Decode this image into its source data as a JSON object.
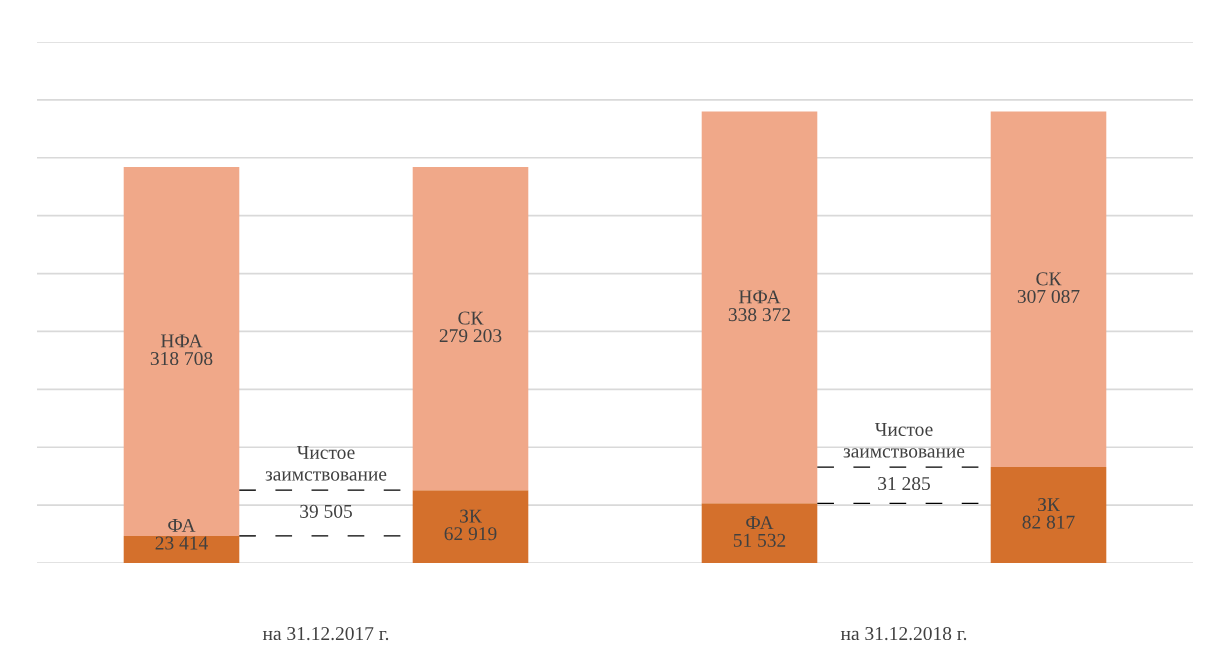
{
  "chart_data": {
    "type": "bar",
    "stacked": true,
    "categories": [
      null,
      null,
      null,
      null
    ],
    "ylim": [
      0,
      450000
    ],
    "yticks": [
      {
        "value": 0,
        "label": null
      },
      {
        "value": 50000,
        "label": null
      },
      {
        "value": 100000,
        "label": null
      },
      {
        "value": 150000,
        "label": null
      },
      {
        "value": 200000,
        "label": null
      },
      {
        "value": 250000,
        "label": null
      },
      {
        "value": 300000,
        "label": null
      },
      {
        "value": 350000,
        "label": null
      },
      {
        "value": 400000,
        "label": null
      },
      {
        "value": 450000,
        "label": null
      }
    ],
    "grid": "y",
    "legend": false,
    "ref_lines": [
      {
        "axis": "y",
        "value": 23414,
        "color": "#000000",
        "line_style": "dashed"
      },
      {
        "axis": "y",
        "value": 62919,
        "color": "#000000",
        "line_style": "dashed"
      },
      {
        "axis": "y",
        "value": 51532,
        "color": "#000000",
        "line_style": "dashed"
      },
      {
        "axis": "y",
        "value": 82817,
        "color": "#000000",
        "line_style": "dashed"
      }
    ],
    "series": [
      {
        "color": "#d4702c",
        "values": [
          23414,
          62919,
          51532,
          82817
        ],
        "value_labels": [
          "ФА\n23 414",
          "ЗК\n62 919",
          "ФА\n51 532",
          "ЗК\n82 817"
        ]
      },
      {
        "color": "#f0a889",
        "values": [
          318708,
          279203,
          338372,
          307087
        ],
        "value_labels": [
          "НФА\n318 708",
          "СК\n279 203",
          "НФА\n338 372",
          "СК\n307 087"
        ]
      }
    ],
    "annotations": [
      "на 31.12.2017 г.",
      "на 31.12.2018 г.",
      "Чистое\nзаимствование",
      "39 505",
      "Чистое\nзаимствование",
      "31 285"
    ]
  }
}
